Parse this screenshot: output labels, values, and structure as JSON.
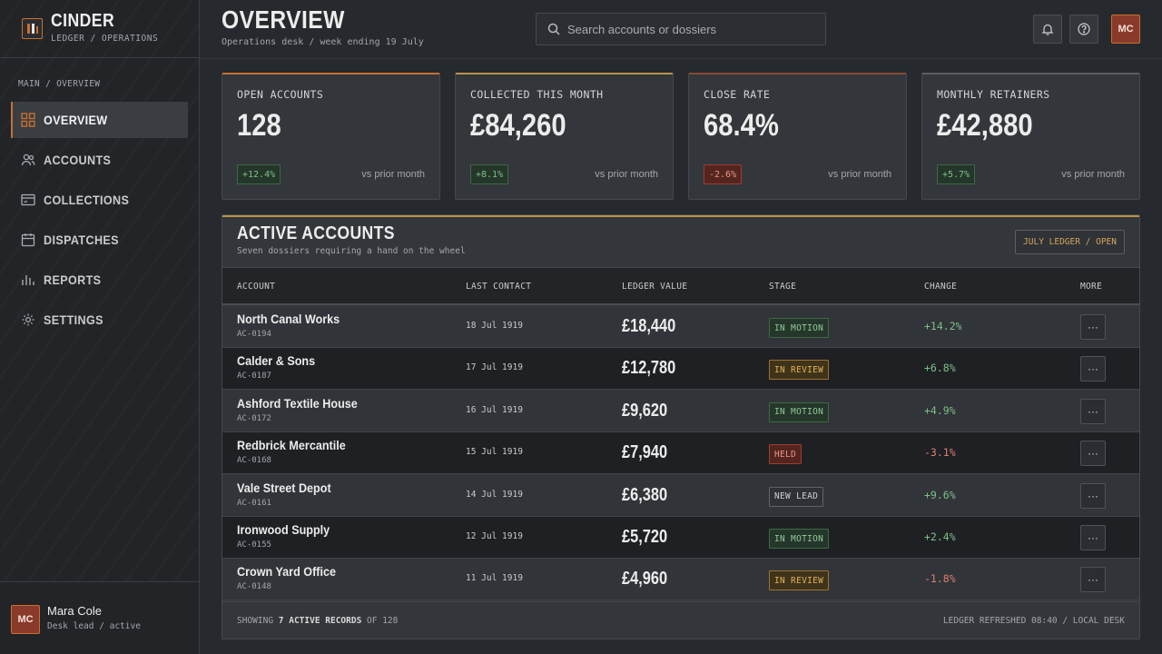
{
  "brand": {
    "name": "CINDER",
    "subtitle": "LEDGER / OPERATIONS"
  },
  "sidebar": {
    "breadcrumb": "MAIN / OVERVIEW",
    "items": [
      {
        "label": "OVERVIEW",
        "icon": "grid-icon",
        "active": true
      },
      {
        "label": "ACCOUNTS",
        "icon": "users-icon",
        "active": false
      },
      {
        "label": "COLLECTIONS",
        "icon": "card-icon",
        "active": false
      },
      {
        "label": "DISPATCHES",
        "icon": "calendar-icon",
        "active": false
      },
      {
        "label": "REPORTS",
        "icon": "bar-chart-icon",
        "active": false
      },
      {
        "label": "SETTINGS",
        "icon": "gear-icon",
        "active": false
      }
    ],
    "user": {
      "initials": "MC",
      "name": "Mara Cole",
      "role": "Desk lead / active"
    }
  },
  "header": {
    "title": "OVERVIEW",
    "subtitle": "Operations desk / week ending 19 July",
    "search_placeholder": "Search accounts or dossiers",
    "avatar_initials": "MC"
  },
  "stats": [
    {
      "label": "OPEN ACCOUNTS",
      "value": "128",
      "delta": "+12.4%",
      "direction": "up",
      "compare": "vs prior month",
      "accent": "#c8702f"
    },
    {
      "label": "COLLECTED THIS MONTH",
      "value": "£84,260",
      "delta": "+8.1%",
      "direction": "up",
      "compare": "vs prior month",
      "accent": "#b9924a"
    },
    {
      "label": "CLOSE RATE",
      "value": "68.4%",
      "delta": "-2.6%",
      "direction": "down",
      "compare": "vs prior month",
      "accent": "#8a4a34"
    },
    {
      "label": "MONTHLY RETAINERS",
      "value": "£42,880",
      "delta": "+5.7%",
      "direction": "up",
      "compare": "vs prior month",
      "accent": "#5a5d62"
    }
  ],
  "accounts_panel": {
    "title": "ACTIVE ACCOUNTS",
    "subtitle": "Seven dossiers requiring a hand on the wheel",
    "tag": "JULY LEDGER / OPEN",
    "columns": [
      "ACCOUNT",
      "LAST CONTACT",
      "LEDGER VALUE",
      "STAGE",
      "CHANGE",
      "MORE"
    ],
    "rows": [
      {
        "name": "North Canal Works",
        "id": "AC-0194",
        "last_contact": "18 Jul 1919",
        "value": "£18,440",
        "stage": "IN MOTION",
        "stage_kind": "motion",
        "change": "+14.2%",
        "direction": "up"
      },
      {
        "name": "Calder & Sons",
        "id": "AC-0187",
        "last_contact": "17 Jul 1919",
        "value": "£12,780",
        "stage": "IN REVIEW",
        "stage_kind": "review",
        "change": "+6.8%",
        "direction": "up"
      },
      {
        "name": "Ashford Textile House",
        "id": "AC-0172",
        "last_contact": "16 Jul 1919",
        "value": "£9,620",
        "stage": "IN MOTION",
        "stage_kind": "motion",
        "change": "+4.9%",
        "direction": "up"
      },
      {
        "name": "Redbrick Mercantile",
        "id": "AC-0168",
        "last_contact": "15 Jul 1919",
        "value": "£7,940",
        "stage": "HELD",
        "stage_kind": "held",
        "change": "-3.1%",
        "direction": "down"
      },
      {
        "name": "Vale Street Depot",
        "id": "AC-0161",
        "last_contact": "14 Jul 1919",
        "value": "£6,380",
        "stage": "NEW LEAD",
        "stage_kind": "new",
        "change": "+9.6%",
        "direction": "up"
      },
      {
        "name": "Ironwood Supply",
        "id": "AC-0155",
        "last_contact": "12 Jul 1919",
        "value": "£5,720",
        "stage": "IN MOTION",
        "stage_kind": "motion",
        "change": "+2.4%",
        "direction": "up"
      },
      {
        "name": "Crown Yard Office",
        "id": "AC-0148",
        "last_contact": "11 Jul 1919",
        "value": "£4,960",
        "stage": "IN REVIEW",
        "stage_kind": "review",
        "change": "-1.8%",
        "direction": "down"
      }
    ],
    "more_label": "···",
    "footer": {
      "showing_prefix": "SHOWING",
      "showing_count": "7 ACTIVE RECORDS",
      "showing_suffix": "OF 128",
      "refreshed": "LEDGER REFRESHED 08:40 / LOCAL DESK"
    }
  }
}
